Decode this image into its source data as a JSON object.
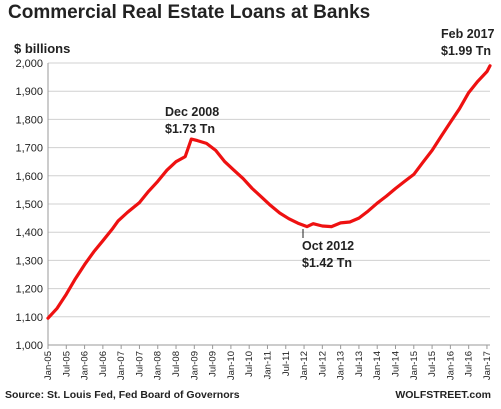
{
  "header": {
    "title": "Commercial Real Estate Loans at Banks",
    "unit": "$ billions"
  },
  "footer": {
    "source": "Source: St. Louis Fed, Fed Board of Governors",
    "brand": "WOLFSTREET.com"
  },
  "annotations": {
    "peak_2008_date": "Dec 2008",
    "peak_2008_value": "$1.73 Tn",
    "trough_2012_date": "Oct 2012",
    "trough_2012_value": "$1.42 Tn",
    "latest_date": "Feb 2017",
    "latest_value": "$1.99 Tn"
  },
  "colors": {
    "line": "#ee1111",
    "grid": "#d0d0d0",
    "axis": "#999999"
  },
  "chart_data": {
    "type": "line",
    "title": "Commercial Real Estate Loans at Banks",
    "ylabel": "$ billions",
    "xlabel": "",
    "ylim": [
      1000,
      2000
    ],
    "yticks": [
      1000,
      1100,
      1200,
      1300,
      1400,
      1500,
      1600,
      1700,
      1800,
      1900,
      2000
    ],
    "ytick_labels": [
      "1,000",
      "1,100",
      "1,200",
      "1,300",
      "1,400",
      "1,500",
      "1,600",
      "1,700",
      "1,800",
      "1,900",
      "2,000"
    ],
    "xlim": [
      "2005-01",
      "2017-02"
    ],
    "xticks": [
      "Jan-05",
      "Jul-05",
      "Jan-06",
      "Jul-06",
      "Jan-07",
      "Jul-07",
      "Jan-08",
      "Jul-08",
      "Jan-09",
      "Jul-09",
      "Jan-10",
      "Jul-10",
      "Jan-11",
      "Jul-11",
      "Jan-12",
      "Jul-12",
      "Jan-13",
      "Jul-13",
      "Jan-14",
      "Jul-14",
      "Jan-15",
      "Jul-15",
      "Jan-16",
      "Jul-16",
      "Jan-17"
    ],
    "grid": true,
    "series": [
      {
        "points": [
          [
            "2005-01",
            1095
          ],
          [
            "2005-04",
            1130
          ],
          [
            "2005-07",
            1180
          ],
          [
            "2005-10",
            1235
          ],
          [
            "2006-01",
            1285
          ],
          [
            "2006-04",
            1330
          ],
          [
            "2006-07",
            1370
          ],
          [
            "2006-10",
            1410
          ],
          [
            "2006-12",
            1440
          ],
          [
            "2007-03",
            1470
          ],
          [
            "2007-07",
            1505
          ],
          [
            "2007-10",
            1545
          ],
          [
            "2008-01",
            1580
          ],
          [
            "2008-04",
            1620
          ],
          [
            "2008-07",
            1650
          ],
          [
            "2008-10",
            1668
          ],
          [
            "2008-12",
            1730
          ],
          [
            "2009-02",
            1725
          ],
          [
            "2009-05",
            1715
          ],
          [
            "2009-08",
            1690
          ],
          [
            "2009-11",
            1650
          ],
          [
            "2010-02",
            1620
          ],
          [
            "2010-05",
            1590
          ],
          [
            "2010-08",
            1555
          ],
          [
            "2010-11",
            1525
          ],
          [
            "2011-02",
            1495
          ],
          [
            "2011-05",
            1468
          ],
          [
            "2011-08",
            1448
          ],
          [
            "2011-11",
            1432
          ],
          [
            "2012-02",
            1420
          ],
          [
            "2012-04",
            1430
          ],
          [
            "2012-07",
            1422
          ],
          [
            "2012-10",
            1420
          ],
          [
            "2013-01",
            1433
          ],
          [
            "2013-04",
            1436
          ],
          [
            "2013-07",
            1450
          ],
          [
            "2013-10",
            1475
          ],
          [
            "2014-01",
            1503
          ],
          [
            "2014-04",
            1528
          ],
          [
            "2014-07",
            1555
          ],
          [
            "2014-10",
            1580
          ],
          [
            "2015-01",
            1605
          ],
          [
            "2015-04",
            1648
          ],
          [
            "2015-07",
            1690
          ],
          [
            "2015-10",
            1740
          ],
          [
            "2016-01",
            1790
          ],
          [
            "2016-04",
            1838
          ],
          [
            "2016-07",
            1895
          ],
          [
            "2016-10",
            1935
          ],
          [
            "2017-01",
            1970
          ],
          [
            "2017-02",
            1990
          ]
        ]
      }
    ]
  }
}
